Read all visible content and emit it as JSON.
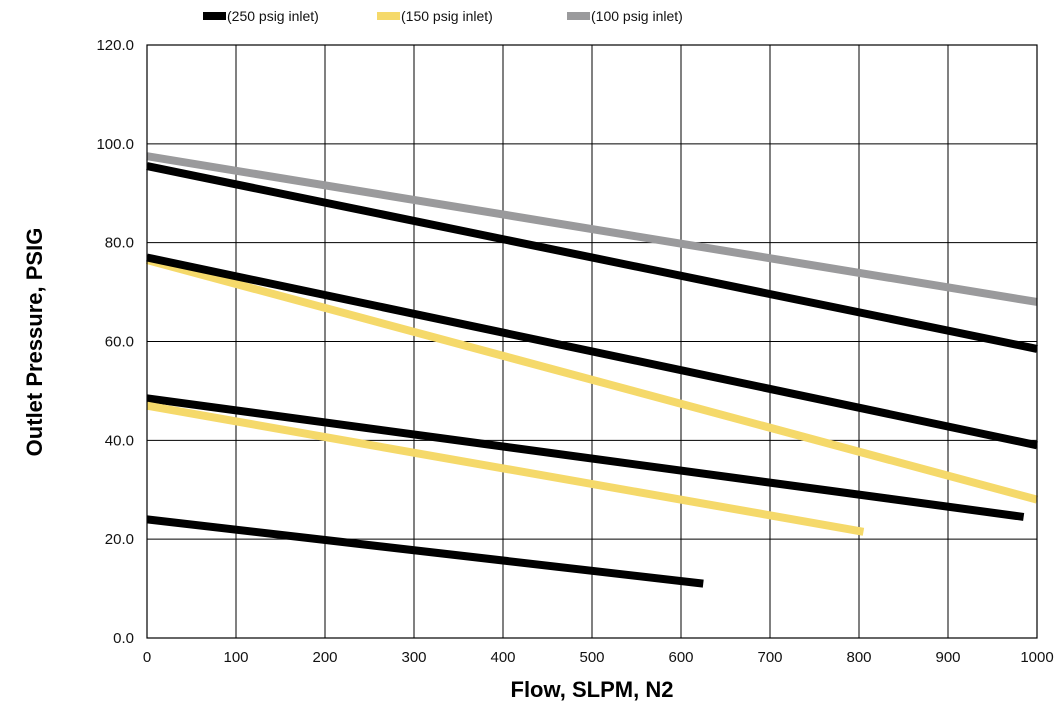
{
  "chart_data": {
    "type": "line",
    "title": "",
    "xlabel": "Flow, SLPM, N2",
    "ylabel": "Outlet Pressure, PSIG",
    "xlim": [
      0,
      1000
    ],
    "ylim": [
      0,
      120
    ],
    "x_ticks": [
      "0",
      "100",
      "200",
      "300",
      "400",
      "500",
      "600",
      "700",
      "800",
      "900",
      "1000"
    ],
    "y_ticks": [
      "0.0",
      "20.0",
      "40.0",
      "60.0",
      "80.0",
      "100.0",
      "120.0"
    ],
    "grid": true,
    "legend_position": "top",
    "legend": [
      {
        "label": "(250 psig inlet)",
        "color": "#000000"
      },
      {
        "label": "(150 psig inlet)",
        "color": "#F5D96A"
      },
      {
        "label": "(100 psig inlet)",
        "color": "#9A9A9C"
      }
    ],
    "series": [
      {
        "inlet": "100 psig",
        "color": "#9A9A9C",
        "x": [
          0,
          1000
        ],
        "y": [
          97.5,
          68.0
        ]
      },
      {
        "inlet": "250 psig",
        "color": "#000000",
        "x": [
          0,
          1000
        ],
        "y": [
          95.5,
          58.5
        ]
      },
      {
        "inlet": "150 psig",
        "color": "#F5D96A",
        "x": [
          0,
          1000
        ],
        "y": [
          76.5,
          28.0
        ]
      },
      {
        "inlet": "250 psig",
        "color": "#000000",
        "x": [
          0,
          1000
        ],
        "y": [
          77.0,
          39.0
        ]
      },
      {
        "inlet": "250 psig",
        "color": "#000000",
        "x": [
          0,
          985
        ],
        "y": [
          48.5,
          24.5
        ]
      },
      {
        "inlet": "150 psig",
        "color": "#F5D96A",
        "x": [
          0,
          805
        ],
        "y": [
          47.0,
          21.5
        ]
      },
      {
        "inlet": "250 psig",
        "color": "#000000",
        "x": [
          0,
          625
        ],
        "y": [
          24.0,
          11.0
        ]
      }
    ]
  }
}
